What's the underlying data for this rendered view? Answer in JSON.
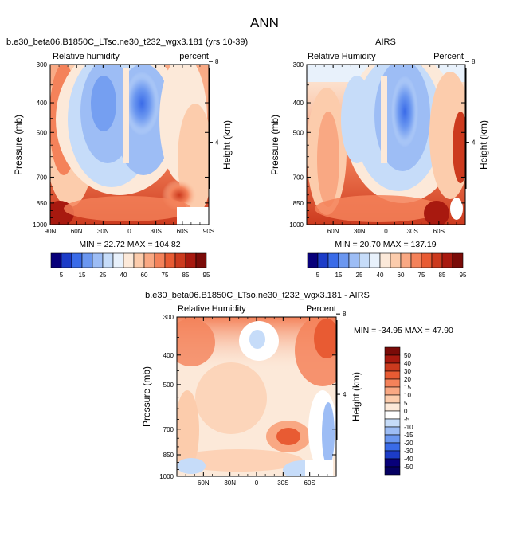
{
  "page": {
    "title": "ANN"
  },
  "chart_data": [
    {
      "type": "heatmap",
      "title": "b.e30_beta06.B1850C_LTso.ne30_t232_wgx3.181 (yrs 10-39)",
      "left_label": "Relative humidity",
      "right_label": "percent",
      "xlabel": "",
      "ylabel": "Pressure (mb)",
      "ylabel_right": "Height (km)",
      "x_ticks": [
        "90N",
        "60N",
        "30N",
        "0",
        "30S",
        "60S",
        "90S"
      ],
      "y_ticks": [
        "300",
        "400",
        "500",
        "700",
        "850",
        "1000"
      ],
      "height_ticks": [
        "8",
        "4"
      ],
      "stats": "MIN = 22.72  MAX = 104.82",
      "colorbar": {
        "labels": [
          "5",
          "15",
          "25",
          "40",
          "60",
          "75",
          "85",
          "95"
        ],
        "colors": [
          "#08007a",
          "#1c3cc8",
          "#3a6be8",
          "#6b97f0",
          "#9dbdf5",
          "#c6dcf9",
          "#e8f1fb",
          "#fce9d9",
          "#fcccac",
          "#f9a883",
          "#f4825a",
          "#e85b33",
          "#cc3a1e",
          "#a8190f",
          "#7a0b08"
        ]
      }
    },
    {
      "type": "heatmap",
      "title": "AIRS",
      "left_label": "Relative Humidity",
      "right_label": "Percent",
      "xlabel": "",
      "ylabel": "Pressure (mb)",
      "ylabel_right": "Height (km)",
      "x_ticks": [
        "60N",
        "30N",
        "0",
        "30S",
        "60S"
      ],
      "y_ticks": [
        "300",
        "400",
        "500",
        "700",
        "850",
        "1000"
      ],
      "height_ticks": [
        "8",
        "4"
      ],
      "stats": "MIN = 20.70  MAX = 137.19",
      "colorbar": {
        "labels": [
          "5",
          "15",
          "25",
          "40",
          "60",
          "75",
          "85",
          "95"
        ],
        "colors": [
          "#08007a",
          "#1c3cc8",
          "#3a6be8",
          "#6b97f0",
          "#9dbdf5",
          "#c6dcf9",
          "#e8f1fb",
          "#fce9d9",
          "#fcccac",
          "#f9a883",
          "#f4825a",
          "#e85b33",
          "#cc3a1e",
          "#a8190f",
          "#7a0b08"
        ]
      }
    },
    {
      "type": "heatmap",
      "title": "b.e30_beta06.B1850C_LTso.ne30_t232_wgx3.181 - AIRS",
      "left_label": "Relative Humidity",
      "right_label": "Percent",
      "xlabel": "",
      "ylabel": "Pressure (mb)",
      "ylabel_right": "Height (km)",
      "x_ticks": [
        "60N",
        "30N",
        "0",
        "30S",
        "60S"
      ],
      "y_ticks": [
        "300",
        "400",
        "500",
        "700",
        "850",
        "1000"
      ],
      "height_ticks": [
        "8",
        "4"
      ],
      "stats": "MIN = -34.95  MAX =  47.90",
      "colorbar": {
        "labels": [
          "50",
          "40",
          "30",
          "20",
          "15",
          "10",
          "5",
          "0",
          "-5",
          "-10",
          "-15",
          "-20",
          "-30",
          "-40",
          "-50"
        ],
        "colors": [
          "#7a0b08",
          "#a8190f",
          "#cc3a1e",
          "#e85b33",
          "#f4825a",
          "#f9a883",
          "#fcccac",
          "#fce9d9",
          "#ffffff",
          "#c6dcf9",
          "#9dbdf5",
          "#6b97f0",
          "#3a6be8",
          "#1c3cc8",
          "#08007a",
          "#050062"
        ]
      }
    }
  ]
}
